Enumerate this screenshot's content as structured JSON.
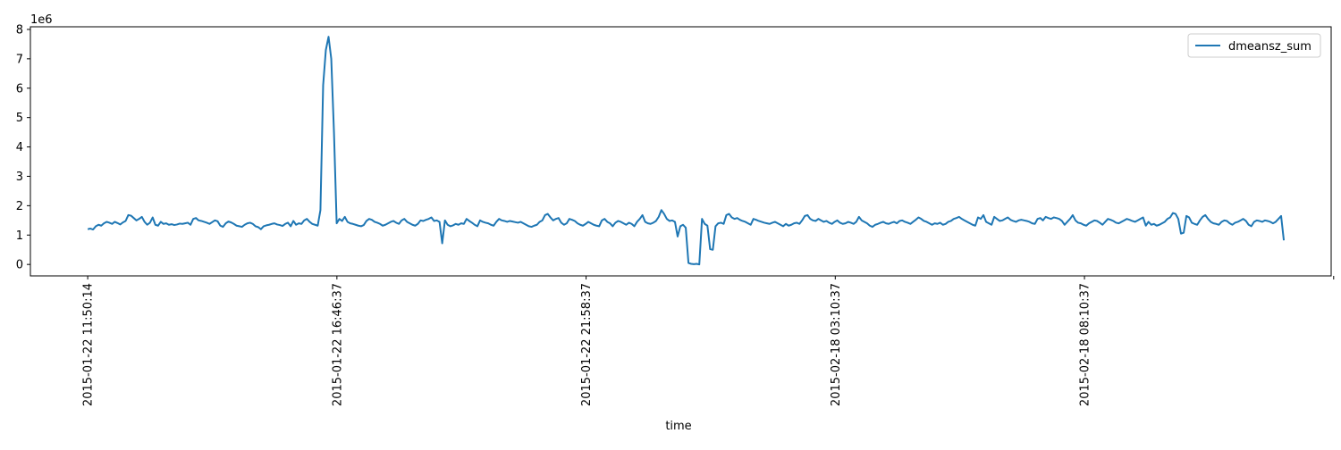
{
  "chart_data": {
    "type": "line",
    "xlabel": "time",
    "ylabel": "",
    "y_scale_label": "1e6",
    "ylim": [
      -0.39,
      8.09
    ],
    "y_ticks": [
      0,
      1,
      2,
      3,
      4,
      5,
      6,
      7,
      8
    ],
    "y_tick_labels": [
      "0",
      "1",
      "2",
      "3",
      "4",
      "5",
      "6",
      "7",
      "8"
    ],
    "x_tick_labels": [
      "2015-01-22 11:50:14",
      "2015-01-22 16:46:37",
      "2015-01-22 21:58:37",
      "2015-02-18 03:10:37",
      "2015-02-18 08:10:37",
      ""
    ],
    "x_tick_positions": [
      0,
      50,
      100,
      150,
      200,
      250
    ],
    "xlim": [
      -11.5,
      249.5
    ],
    "legend_position": "upper right",
    "grid": false,
    "color": "#1f77b4",
    "series": [
      {
        "name": "dmeansz_sum",
        "values": [
          1.2,
          1.22,
          1.19,
          1.3,
          1.35,
          1.32,
          1.4,
          1.45,
          1.42,
          1.38,
          1.45,
          1.41,
          1.36,
          1.43,
          1.48,
          1.68,
          1.66,
          1.58,
          1.5,
          1.55,
          1.62,
          1.45,
          1.35,
          1.42,
          1.6,
          1.35,
          1.32,
          1.45,
          1.38,
          1.4,
          1.35,
          1.37,
          1.34,
          1.36,
          1.39,
          1.38,
          1.4,
          1.42,
          1.35,
          1.55,
          1.58,
          1.5,
          1.48,
          1.45,
          1.42,
          1.38,
          1.44,
          1.5,
          1.47,
          1.32,
          1.28,
          1.4,
          1.46,
          1.43,
          1.38,
          1.32,
          1.3,
          1.28,
          1.35,
          1.4,
          1.42,
          1.38,
          1.3,
          1.27,
          1.2,
          1.3,
          1.33,
          1.35,
          1.38,
          1.4,
          1.36,
          1.34,
          1.31,
          1.38,
          1.42,
          1.3,
          1.48,
          1.35,
          1.4,
          1.38,
          1.5,
          1.55,
          1.45,
          1.38,
          1.35,
          1.32,
          1.85,
          6.1,
          7.3,
          7.75,
          7.0,
          4.5,
          1.4,
          1.55,
          1.48,
          1.62,
          1.45,
          1.4,
          1.38,
          1.35,
          1.32,
          1.3,
          1.34,
          1.48,
          1.55,
          1.52,
          1.45,
          1.42,
          1.38,
          1.32,
          1.35,
          1.4,
          1.45,
          1.48,
          1.42,
          1.38,
          1.5,
          1.55,
          1.45,
          1.4,
          1.35,
          1.32,
          1.38,
          1.5,
          1.48,
          1.52,
          1.55,
          1.6,
          1.48,
          1.5,
          1.45,
          0.72,
          1.5,
          1.35,
          1.3,
          1.33,
          1.38,
          1.35,
          1.4,
          1.38,
          1.55,
          1.48,
          1.42,
          1.35,
          1.3,
          1.5,
          1.45,
          1.42,
          1.4,
          1.35,
          1.32,
          1.45,
          1.55,
          1.5,
          1.48,
          1.45,
          1.48,
          1.46,
          1.44,
          1.42,
          1.45,
          1.4,
          1.35,
          1.3,
          1.28,
          1.32,
          1.35,
          1.45,
          1.5,
          1.68,
          1.72,
          1.6,
          1.5,
          1.55,
          1.58,
          1.42,
          1.35,
          1.4,
          1.55,
          1.52,
          1.48,
          1.4,
          1.35,
          1.32,
          1.38,
          1.45,
          1.4,
          1.35,
          1.32,
          1.3,
          1.5,
          1.55,
          1.45,
          1.4,
          1.3,
          1.42,
          1.48,
          1.45,
          1.4,
          1.35,
          1.42,
          1.38,
          1.3,
          1.45,
          1.55,
          1.68,
          1.45,
          1.4,
          1.38,
          1.42,
          1.48,
          1.62,
          1.85,
          1.72,
          1.55,
          1.48,
          1.5,
          1.45,
          0.95,
          1.3,
          1.35,
          1.25,
          0.05,
          0.02,
          0.01,
          0.02,
          0.0,
          1.55,
          1.38,
          1.32,
          0.52,
          0.5,
          1.3,
          1.4,
          1.42,
          1.38,
          1.68,
          1.72,
          1.6,
          1.55,
          1.58,
          1.52,
          1.48,
          1.45,
          1.4,
          1.35,
          1.55,
          1.52,
          1.48,
          1.45,
          1.42,
          1.4,
          1.38,
          1.42,
          1.45,
          1.4,
          1.35,
          1.3,
          1.38,
          1.32,
          1.35,
          1.4,
          1.42,
          1.38,
          1.5,
          1.65,
          1.68,
          1.55,
          1.5,
          1.48,
          1.55,
          1.5,
          1.45,
          1.48,
          1.42,
          1.38,
          1.45,
          1.5,
          1.42,
          1.38,
          1.4,
          1.45,
          1.42,
          1.38,
          1.45,
          1.62,
          1.5,
          1.45,
          1.4,
          1.32,
          1.28,
          1.35,
          1.38,
          1.42,
          1.45,
          1.4,
          1.38,
          1.42,
          1.45,
          1.4,
          1.48,
          1.5,
          1.45,
          1.42,
          1.38,
          1.45,
          1.52,
          1.6,
          1.55,
          1.48,
          1.45,
          1.4,
          1.35,
          1.4,
          1.38,
          1.42,
          1.35,
          1.38,
          1.45,
          1.48,
          1.55,
          1.58,
          1.62,
          1.55,
          1.5,
          1.45,
          1.4,
          1.35,
          1.32,
          1.6,
          1.55,
          1.68,
          1.45,
          1.4,
          1.35,
          1.62,
          1.55,
          1.48,
          1.5,
          1.55,
          1.6,
          1.52,
          1.48,
          1.45,
          1.5,
          1.52,
          1.5,
          1.48,
          1.45,
          1.4,
          1.38,
          1.55,
          1.58,
          1.5,
          1.62,
          1.58,
          1.55,
          1.6,
          1.58,
          1.55,
          1.48,
          1.35,
          1.45,
          1.55,
          1.68,
          1.5,
          1.42,
          1.4,
          1.35,
          1.32,
          1.4,
          1.45,
          1.5,
          1.48,
          1.42,
          1.35,
          1.45,
          1.55,
          1.52,
          1.48,
          1.42,
          1.4,
          1.45,
          1.5,
          1.55,
          1.52,
          1.48,
          1.45,
          1.5,
          1.55,
          1.6,
          1.32,
          1.45,
          1.35,
          1.38,
          1.32,
          1.35,
          1.4,
          1.45,
          1.55,
          1.6,
          1.75,
          1.72,
          1.55,
          1.05,
          1.08,
          1.65,
          1.6,
          1.42,
          1.38,
          1.35,
          1.5,
          1.62,
          1.68,
          1.55,
          1.45,
          1.4,
          1.38,
          1.35,
          1.45,
          1.5,
          1.48,
          1.4,
          1.35,
          1.42,
          1.45,
          1.5,
          1.55,
          1.48,
          1.35,
          1.3,
          1.45,
          1.5,
          1.48,
          1.45,
          1.5,
          1.48,
          1.45,
          1.4,
          1.45,
          1.55,
          1.65,
          0.82
        ]
      }
    ]
  }
}
